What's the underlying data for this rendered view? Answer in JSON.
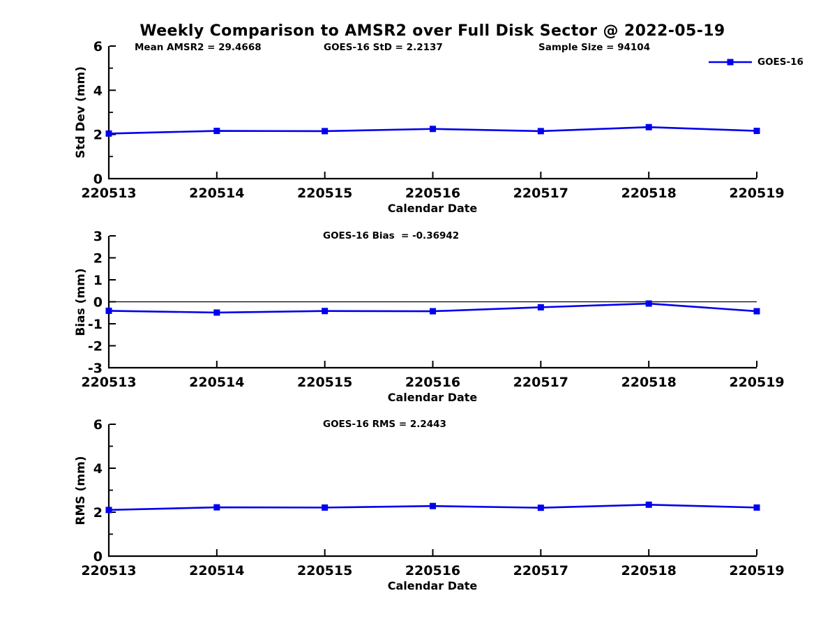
{
  "figure": {
    "title": "Weekly Comparison to AMSR2 over Full Disk Sector @ 2022-05-19"
  },
  "legend": {
    "label": "GOES-16",
    "color": "#0000ee",
    "position": "top-right"
  },
  "chart_data": [
    {
      "type": "line",
      "xlabel": "Calendar Date",
      "ylabel": "Std Dev (mm)",
      "ylim": [
        0,
        6
      ],
      "yticks": [
        0,
        2,
        4,
        6
      ],
      "yminorticks": [
        1,
        3,
        5
      ],
      "grid": false,
      "annotations": [
        "Mean AMSR2 = 29.4668",
        "GOES-16 StD = 2.2137",
        "Sample Size = 94104"
      ],
      "categories": [
        "220513",
        "220514",
        "220515",
        "220516",
        "220517",
        "220518",
        "220519"
      ],
      "series": [
        {
          "name": "GOES-16",
          "color": "#0000ee",
          "marker": "square",
          "values": [
            2.04,
            2.16,
            2.15,
            2.25,
            2.15,
            2.33,
            2.16
          ]
        }
      ]
    },
    {
      "type": "line",
      "xlabel": "Calendar Date",
      "ylabel": "Bias (mm)",
      "ylim": [
        -3,
        3
      ],
      "yticks": [
        -3,
        -2,
        -1,
        0,
        1,
        2,
        3
      ],
      "zero_line": true,
      "grid": false,
      "annotations": [
        "GOES-16 Bias  = -0.36942"
      ],
      "categories": [
        "220513",
        "220514",
        "220515",
        "220516",
        "220517",
        "220518",
        "220519"
      ],
      "series": [
        {
          "name": "GOES-16",
          "color": "#0000ee",
          "marker": "square",
          "values": [
            -0.41,
            -0.49,
            -0.42,
            -0.43,
            -0.25,
            -0.08,
            -0.43
          ]
        }
      ]
    },
    {
      "type": "line",
      "xlabel": "Calendar Date",
      "ylabel": "RMS (mm)",
      "ylim": [
        0,
        6
      ],
      "yticks": [
        0,
        2,
        4,
        6
      ],
      "yminorticks": [
        1,
        3,
        5
      ],
      "grid": false,
      "annotations": [
        "GOES-16 RMS = 2.2443"
      ],
      "categories": [
        "220513",
        "220514",
        "220515",
        "220516",
        "220517",
        "220518",
        "220519"
      ],
      "series": [
        {
          "name": "GOES-16",
          "color": "#0000ee",
          "marker": "square",
          "values": [
            2.1,
            2.22,
            2.21,
            2.28,
            2.2,
            2.34,
            2.21
          ]
        }
      ]
    }
  ]
}
